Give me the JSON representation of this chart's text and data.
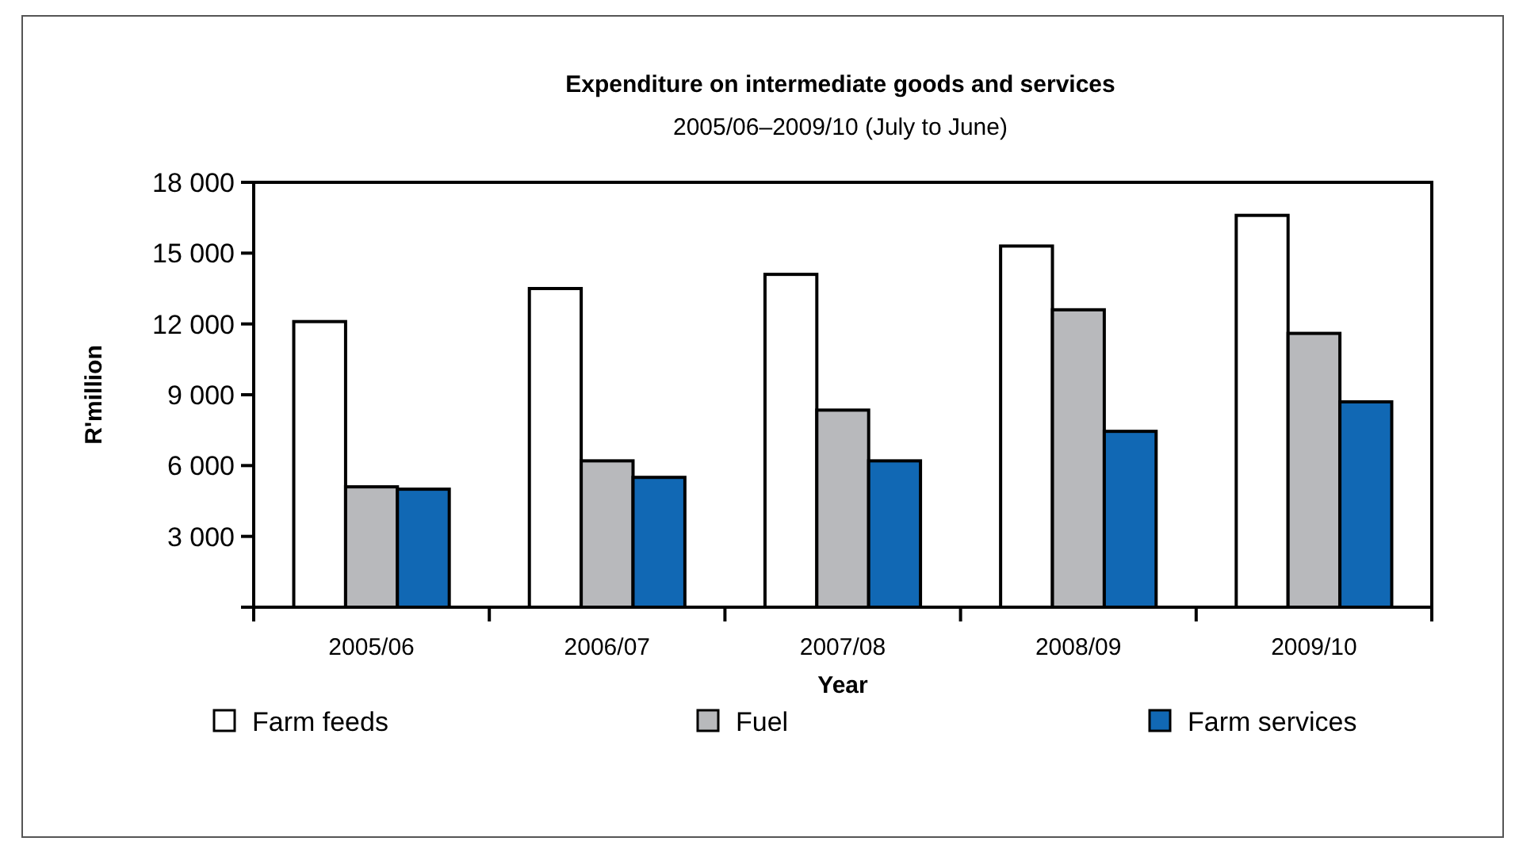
{
  "chart_data": {
    "type": "bar",
    "title": "Expenditure on  intermediate goods and services",
    "subtitle": "2005/06–2009/10 (July to June)",
    "xlabel": "Year",
    "ylabel": "R'million",
    "categories": [
      "2005/06",
      "2006/07",
      "2007/08",
      "2008/09",
      "2009/10"
    ],
    "series": [
      {
        "name": "Farm feeds",
        "color": "#ffffff",
        "values": [
          12100,
          13500,
          14100,
          15300,
          16600
        ]
      },
      {
        "name": "Fuel",
        "color": "#b8b9bc",
        "values": [
          5100,
          6200,
          8350,
          12600,
          11600
        ]
      },
      {
        "name": "Farm services",
        "color": "#1168b4",
        "values": [
          5000,
          5500,
          6200,
          7450,
          8700
        ]
      }
    ],
    "ylim": [
      0,
      18000
    ],
    "yticks": [
      {
        "value": 0,
        "label": null
      },
      {
        "value": 3000,
        "label": "3 000"
      },
      {
        "value": 6000,
        "label": "6 000"
      },
      {
        "value": 9000,
        "label": "9 000"
      },
      {
        "value": 12000,
        "label": "12 000"
      },
      {
        "value": 15000,
        "label": "15 000"
      },
      {
        "value": 18000,
        "label": "18 000"
      }
    ],
    "grid": false,
    "legend": "bottom"
  }
}
